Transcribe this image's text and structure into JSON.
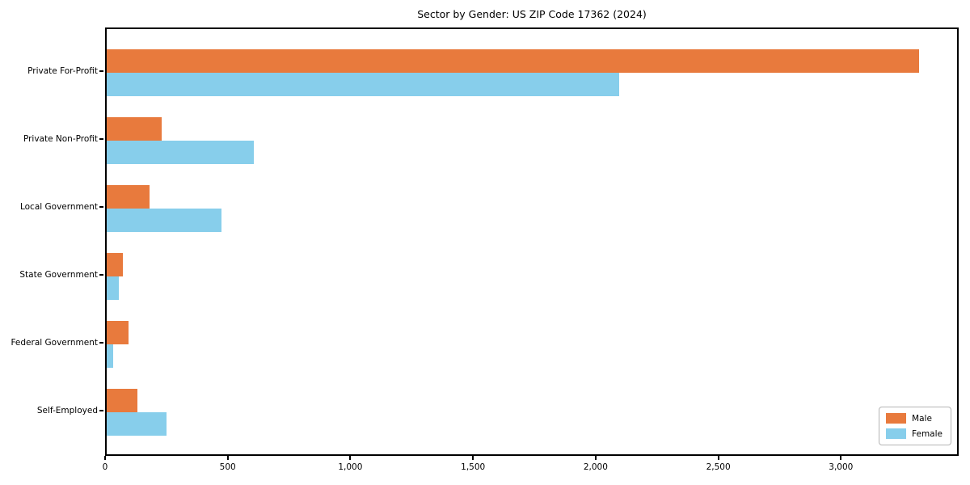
{
  "figure": {
    "background_color": "#ffffff",
    "axis_color": "#000000"
  },
  "chart_data": {
    "type": "bar",
    "orientation": "horizontal",
    "title": "Sector by Gender: US ZIP Code 17362 (2024)",
    "categories": [
      "Private For-Profit",
      "Private Non-Profit",
      "Local Government",
      "State Government",
      "Federal Government",
      "Self-Employed"
    ],
    "series": [
      {
        "name": "Male",
        "color": "#e87a3d",
        "values": [
          3313,
          223,
          176,
          66,
          90,
          126
        ]
      },
      {
        "name": "Female",
        "color": "#87ceeb",
        "values": [
          2090,
          600,
          469,
          50,
          26,
          243
        ]
      }
    ],
    "xlim": [
      0,
      3480
    ],
    "xticks": {
      "values": [
        0,
        500,
        1000,
        1500,
        2000,
        2500,
        3000
      ],
      "labels": [
        "0",
        "500",
        "1,000",
        "1,500",
        "2,000",
        "2,500",
        "3,000"
      ]
    },
    "xlabel": "",
    "ylabel": "",
    "grid": false,
    "legend_position": "lower right"
  }
}
